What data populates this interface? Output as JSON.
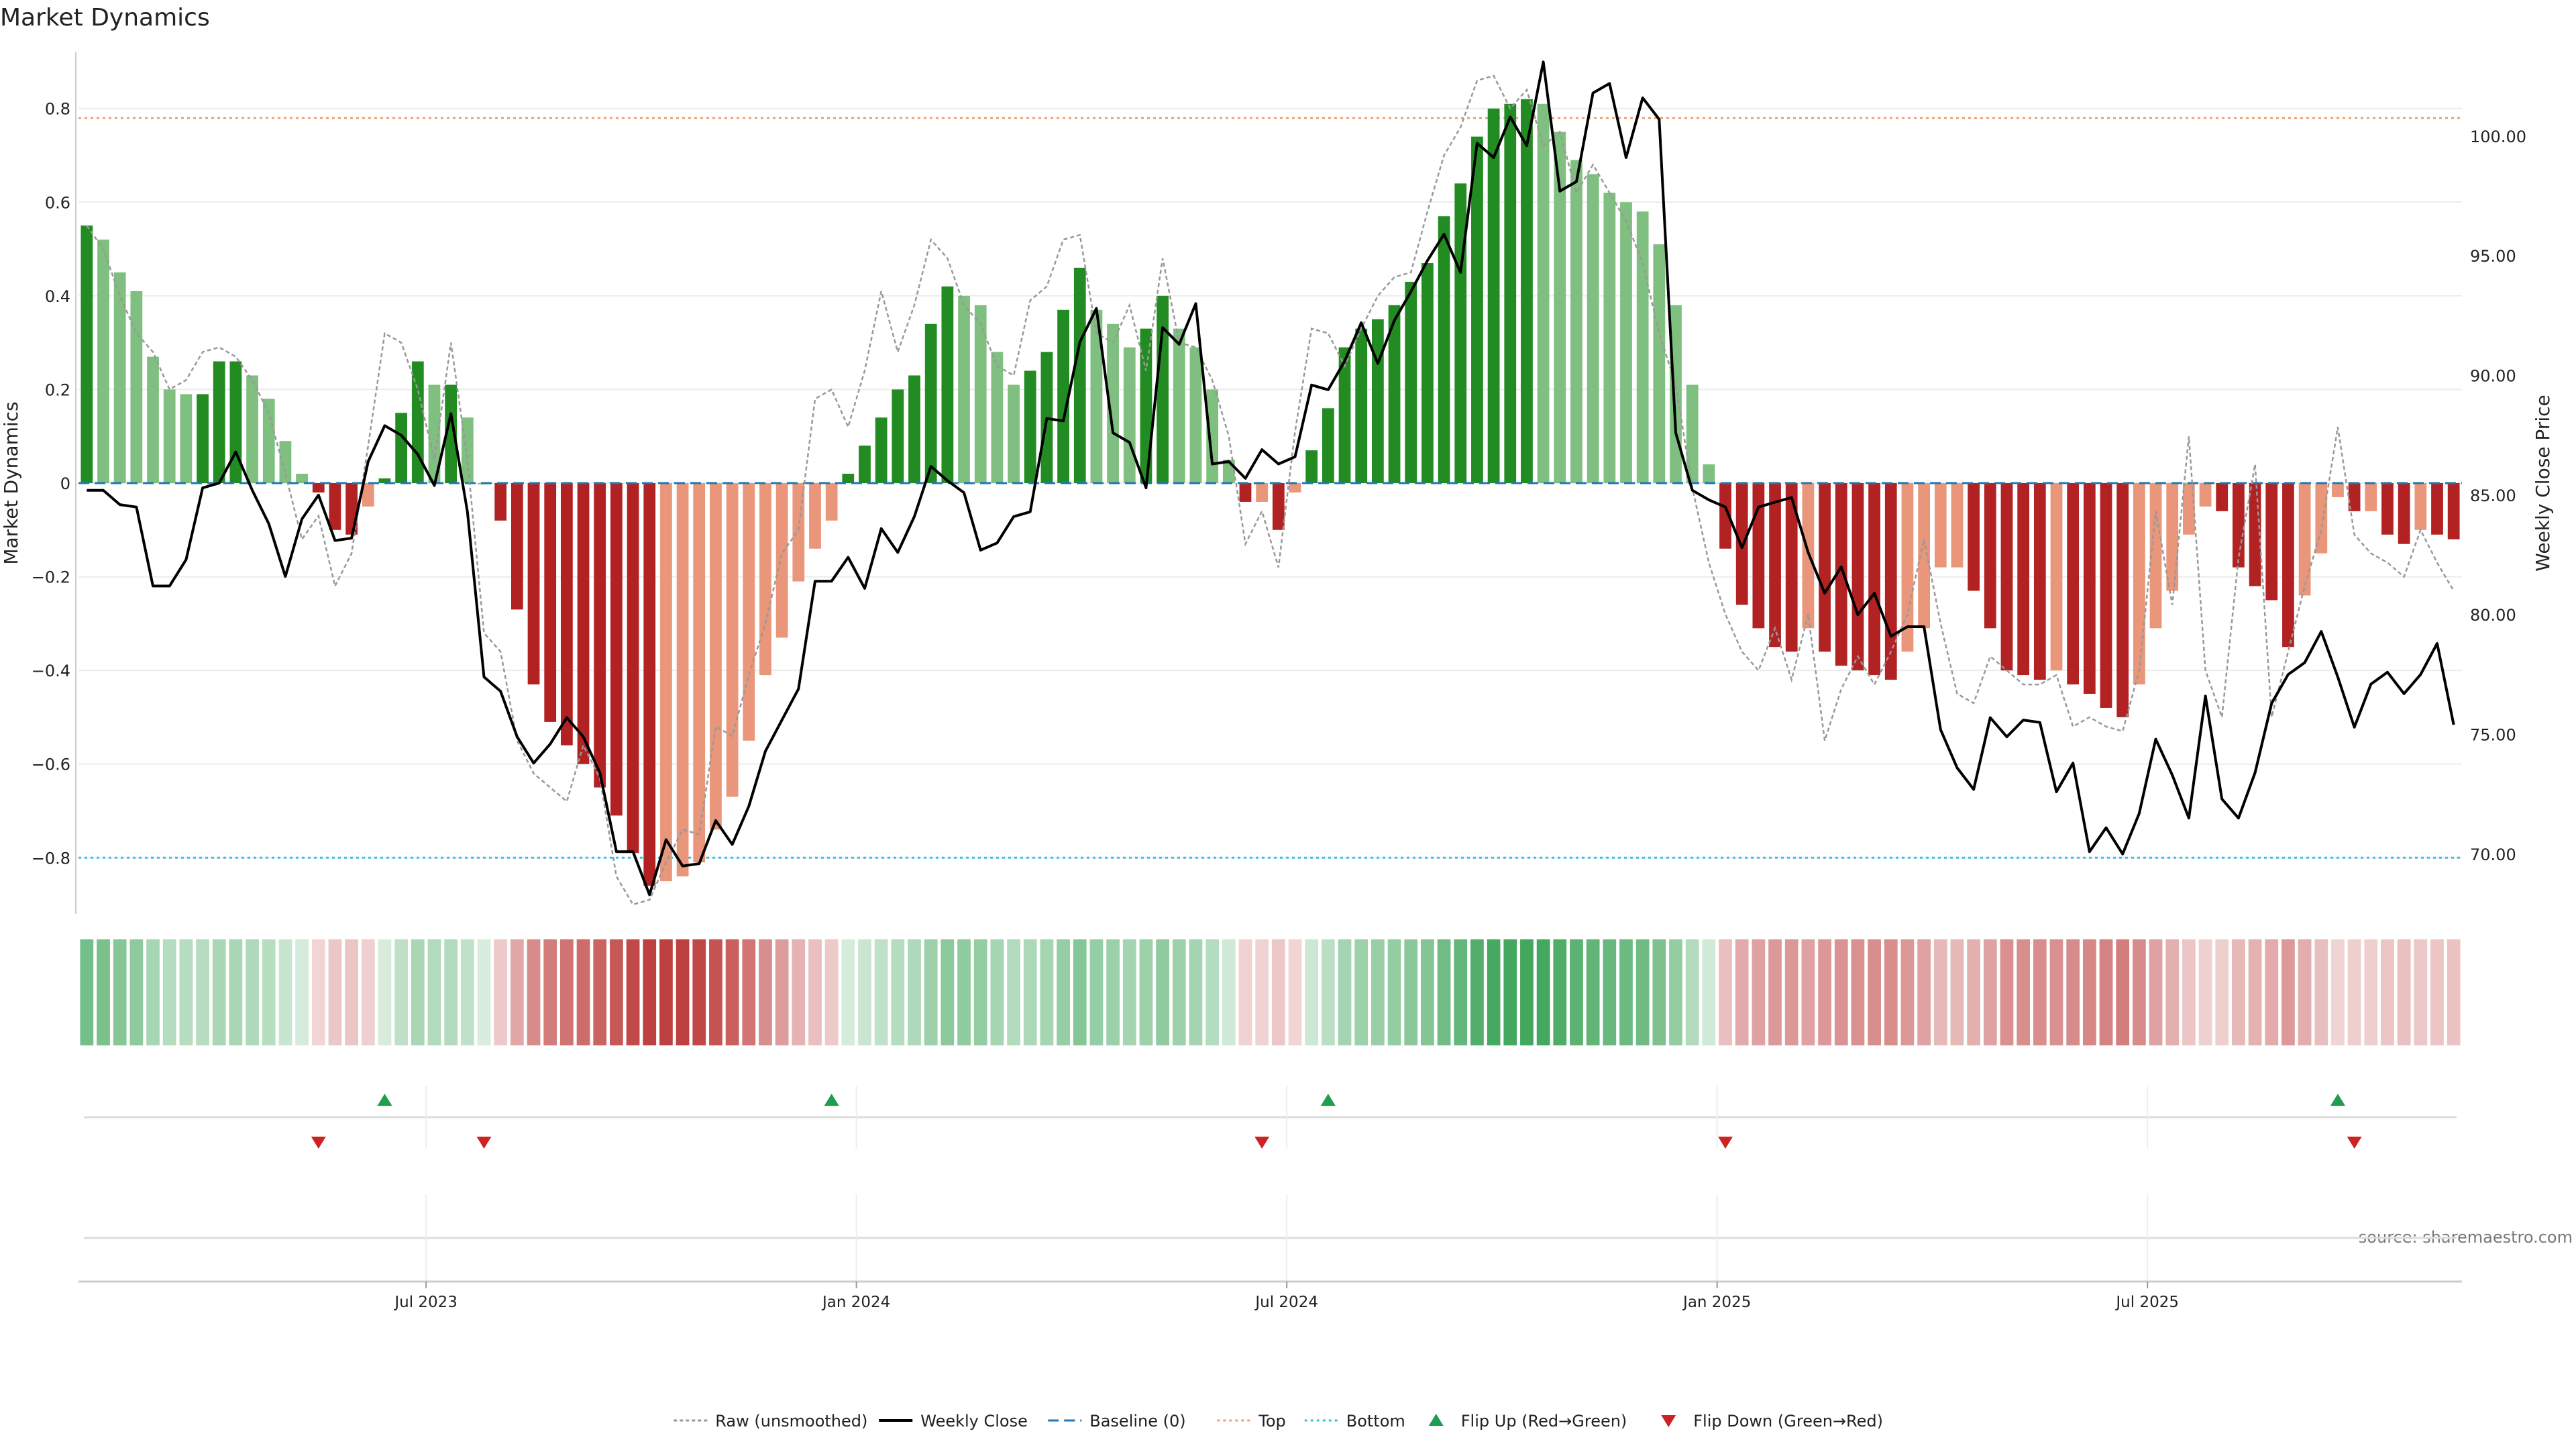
{
  "chart_data": {
    "type": "bar",
    "title": "Market Dynamics",
    "ylabel_left": "Market Dynamics",
    "ylabel_right": "Weekly Close Price",
    "source": "source: sharemaestro.com",
    "ylim_left": [
      -0.92,
      0.92
    ],
    "ylim_right": [
      67.5,
      103.5
    ],
    "yticks_left": [
      -0.8,
      -0.6,
      -0.4,
      -0.2,
      0,
      0.2,
      0.4,
      0.6,
      0.8
    ],
    "ytick_labels_left": [
      "−0.8",
      "−0.6",
      "−0.4",
      "−0.2",
      "0",
      "0.2",
      "0.4",
      "0.6",
      "0.8"
    ],
    "yticks_right": [
      70,
      75,
      80,
      85,
      90,
      95,
      100
    ],
    "ytick_labels_right": [
      "70.00",
      "75.00",
      "80.00",
      "85.00",
      "90.00",
      "95.00",
      "100.00"
    ],
    "x_start": "2023-01-09",
    "week_count": 144,
    "date_ticks": [
      {
        "label": "Jul 2023",
        "week": 21
      },
      {
        "label": "Jan 2024",
        "week": 47
      },
      {
        "label": "Jul 2024",
        "week": 73
      },
      {
        "label": "Jan 2025",
        "week": 99
      },
      {
        "label": "Jul 2025",
        "week": 125
      }
    ],
    "top_level": 0.78,
    "bottom_level": -0.8,
    "baseline": 0,
    "grid": true,
    "legend_position": "bottom-center",
    "legend": [
      {
        "label": "Raw (unsmoothed)",
        "style": "dotted-gray"
      },
      {
        "label": "Weekly Close",
        "style": "solid-black"
      },
      {
        "label": "Baseline (0)",
        "style": "dashed-blue"
      },
      {
        "label": "Top",
        "style": "dotted-orange"
      },
      {
        "label": "Bottom",
        "style": "dotted-cyan"
      },
      {
        "label": "Flip Up (Red→Green)",
        "style": "triangle-up-green"
      },
      {
        "label": "Flip Down (Green→Red)",
        "style": "triangle-down-red"
      }
    ],
    "colors": {
      "green_strong": "#228b22",
      "green_light": "#7fbf7f",
      "red_strong": "#b22222",
      "red_light": "#e9967a",
      "raw": "#999999",
      "close": "#000000",
      "baseline": "#1f77b4",
      "top": "#f0a070",
      "bottom": "#3fbfdf",
      "flip_up": "#1e9e50",
      "flip_down": "#cc2222"
    },
    "series": [
      {
        "name": "Market Dynamics",
        "values": [
          0.55,
          0.52,
          0.45,
          0.41,
          0.27,
          0.2,
          0.19,
          0.19,
          0.26,
          0.26,
          0.23,
          0.18,
          0.09,
          0.02,
          -0.02,
          -0.1,
          -0.11,
          -0.05,
          0.01,
          0.15,
          0.26,
          0.21,
          0.21,
          0.14,
          0,
          -0.08,
          -0.27,
          -0.43,
          -0.51,
          -0.56,
          -0.6,
          -0.65,
          -0.71,
          -0.79,
          -0.86,
          -0.85,
          -0.84,
          -0.81,
          -0.74,
          -0.67,
          -0.55,
          -0.41,
          -0.33,
          -0.21,
          -0.14,
          -0.08,
          0.02,
          0.08,
          0.14,
          0.2,
          0.23,
          0.34,
          0.42,
          0.4,
          0.38,
          0.28,
          0.21,
          0.24,
          0.28,
          0.37,
          0.46,
          0.37,
          0.34,
          0.29,
          0.33,
          0.4,
          0.33,
          0.29,
          0.2,
          0.05,
          -0.04,
          -0.04,
          -0.1,
          -0.02,
          0.07,
          0.16,
          0.29,
          0.33,
          0.35,
          0.38,
          0.43,
          0.47,
          0.57,
          0.64,
          0.74,
          0.8,
          0.81,
          0.82,
          0.81,
          0.75,
          0.69,
          0.66,
          0.62,
          0.6,
          0.58,
          0.51,
          0.38,
          0.21,
          0.04,
          -0.14,
          -0.26,
          -0.31,
          -0.35,
          -0.36,
          -0.31,
          -0.36,
          -0.39,
          -0.4,
          -0.41,
          -0.42,
          -0.36,
          -0.31,
          -0.18,
          -0.18,
          -0.23,
          -0.31,
          -0.4,
          -0.41,
          -0.42,
          -0.4,
          -0.43,
          -0.45,
          -0.48,
          -0.5,
          -0.43,
          -0.31,
          -0.23,
          -0.11,
          -0.05,
          -0.06,
          -0.18,
          -0.22,
          -0.25,
          -0.35,
          -0.24,
          -0.15,
          -0.03,
          -0.06,
          -0.06,
          -0.11,
          -0.13,
          -0.1,
          -0.11,
          -0.12
        ]
      },
      {
        "name": "Raw (unsmoothed)",
        "values": [
          0.55,
          0.5,
          0.4,
          0.32,
          0.28,
          0.2,
          0.22,
          0.28,
          0.29,
          0.27,
          0.22,
          0.15,
          0.02,
          -0.12,
          -0.07,
          -0.22,
          -0.15,
          0.08,
          0.32,
          0.3,
          0.2,
          0.05,
          0.3,
          0.05,
          -0.32,
          -0.36,
          -0.55,
          -0.62,
          -0.65,
          -0.68,
          -0.56,
          -0.63,
          -0.84,
          -0.9,
          -0.89,
          -0.81,
          -0.74,
          -0.75,
          -0.52,
          -0.54,
          -0.41,
          -0.3,
          -0.15,
          -0.1,
          0.18,
          0.2,
          0.12,
          0.24,
          0.41,
          0.28,
          0.38,
          0.52,
          0.48,
          0.38,
          0.34,
          0.25,
          0.23,
          0.39,
          0.42,
          0.52,
          0.53,
          0.32,
          0.3,
          0.38,
          0.24,
          0.48,
          0.3,
          0.29,
          0.22,
          0.1,
          -0.13,
          -0.06,
          -0.18,
          0.11,
          0.33,
          0.32,
          0.25,
          0.33,
          0.4,
          0.44,
          0.45,
          0.58,
          0.7,
          0.76,
          0.86,
          0.87,
          0.8,
          0.84,
          0.72,
          0.75,
          0.62,
          0.68,
          0.62,
          0.56,
          0.47,
          0.32,
          0.21,
          -0.01,
          -0.17,
          -0.28,
          -0.36,
          -0.4,
          -0.31,
          -0.42,
          -0.28,
          -0.55,
          -0.44,
          -0.37,
          -0.43,
          -0.36,
          -0.28,
          -0.12,
          -0.3,
          -0.45,
          -0.47,
          -0.37,
          -0.4,
          -0.43,
          -0.43,
          -0.41,
          -0.52,
          -0.5,
          -0.52,
          -0.53,
          -0.4,
          -0.06,
          -0.26,
          0.1,
          -0.4,
          -0.5,
          -0.16,
          0.04,
          -0.5,
          -0.36,
          -0.22,
          -0.1,
          0.12,
          -0.11,
          -0.15,
          -0.17,
          -0.2,
          -0.1,
          -0.17,
          -0.23
        ]
      },
      {
        "name": "Weekly Close",
        "values": [
          85.2,
          85.2,
          84.6,
          84.5,
          81.2,
          81.2,
          82.3,
          85.3,
          85.5,
          86.8,
          85.2,
          83.8,
          81.6,
          84.0,
          85.0,
          83.1,
          83.2,
          86.4,
          87.9,
          87.5,
          86.7,
          85.4,
          88.4,
          84.3,
          77.4,
          76.8,
          74.9,
          73.8,
          74.6,
          75.7,
          74.9,
          73.4,
          70.1,
          70.1,
          68.3,
          70.6,
          69.5,
          69.6,
          71.4,
          70.4,
          72.0,
          74.3,
          75.6,
          76.9,
          81.4,
          81.4,
          82.4,
          81.1,
          83.6,
          82.6,
          84.1,
          86.2,
          85.6,
          85.1,
          82.7,
          83.0,
          84.1,
          84.3,
          88.2,
          88.1,
          91.4,
          92.8,
          87.6,
          87.2,
          85.3,
          92.0,
          91.3,
          93.0,
          86.3,
          86.4,
          85.7,
          86.9,
          86.3,
          86.6,
          89.6,
          89.4,
          90.6,
          92.2,
          90.5,
          92.3,
          93.5,
          94.8,
          95.9,
          94.3,
          99.7,
          99.1,
          100.8,
          99.6,
          103.1,
          97.7,
          98.1,
          101.8,
          102.2,
          99.1,
          101.6,
          100.7,
          87.6,
          85.2,
          84.8,
          84.5,
          82.8,
          84.5,
          84.7,
          84.9,
          82.6,
          80.9,
          82.0,
          80.0,
          80.9,
          79.1,
          79.5,
          79.5,
          75.2,
          73.6,
          72.7,
          75.7,
          74.9,
          75.6,
          75.5,
          72.6,
          73.8,
          70.1,
          71.1,
          70.0,
          71.7,
          74.8,
          73.3,
          71.5,
          76.6,
          72.3,
          71.5,
          73.4,
          76.3,
          77.5,
          78.0,
          79.3,
          77.4,
          75.3,
          77.1,
          77.6,
          76.7,
          77.5,
          78.8,
          75.4
        ]
      }
    ],
    "flip_up_weeks": [
      18,
      45,
      75,
      136
    ],
    "flip_down_weeks": [
      14,
      24,
      71,
      99,
      137
    ]
  }
}
